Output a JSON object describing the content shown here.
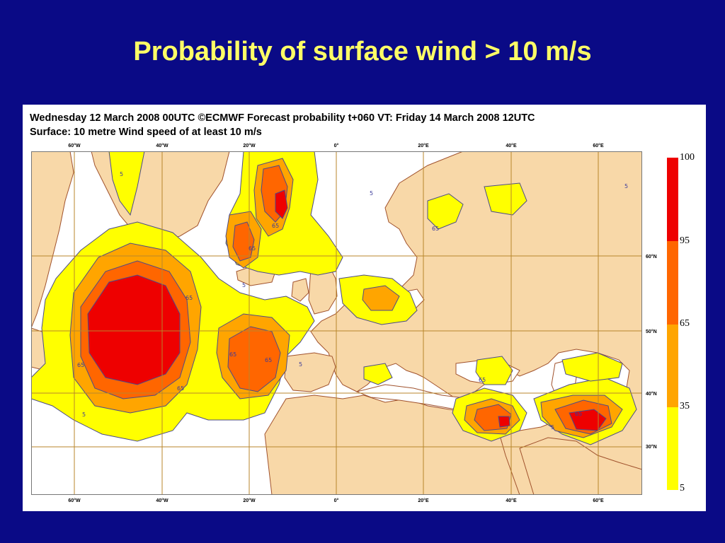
{
  "title": "Probability of surface wind > 10 m/s",
  "figure": {
    "header_line1": "Wednesday 12 March 2008 00UTC ©ECMWF Forecast probability t+060 VT: Friday 14 March 2008 12UTC",
    "header_line2": "Surface: 10 metre Wind speed of at least 10 m/s",
    "longitudes": [
      "60°W",
      "40°W",
      "20°W",
      "0°",
      "20°E",
      "40°E",
      "60°E"
    ],
    "latitudes": [
      "60°N",
      "50°N",
      "40°N",
      "30°N"
    ],
    "contour_labels": [
      "5",
      "5",
      "5",
      "5",
      "5",
      "5",
      "5",
      "65",
      "65",
      "65",
      "65",
      "65",
      "65",
      "65",
      "65",
      "65",
      "65"
    ],
    "colorbar": {
      "labels": [
        "100",
        "95",
        "65",
        "35",
        "5"
      ],
      "colors": [
        "#ee0000",
        "#ff6600",
        "#ffa500",
        "#ffff00"
      ]
    },
    "colors": {
      "land": "#f8d8a8",
      "sea": "#ffffff",
      "coast": "#a0522d",
      "grid": "#b8862b",
      "p5": "#ffff00",
      "p35": "#ffa500",
      "p65": "#ff6600",
      "p95": "#ee0000",
      "contour": "#4b4b8a"
    }
  }
}
